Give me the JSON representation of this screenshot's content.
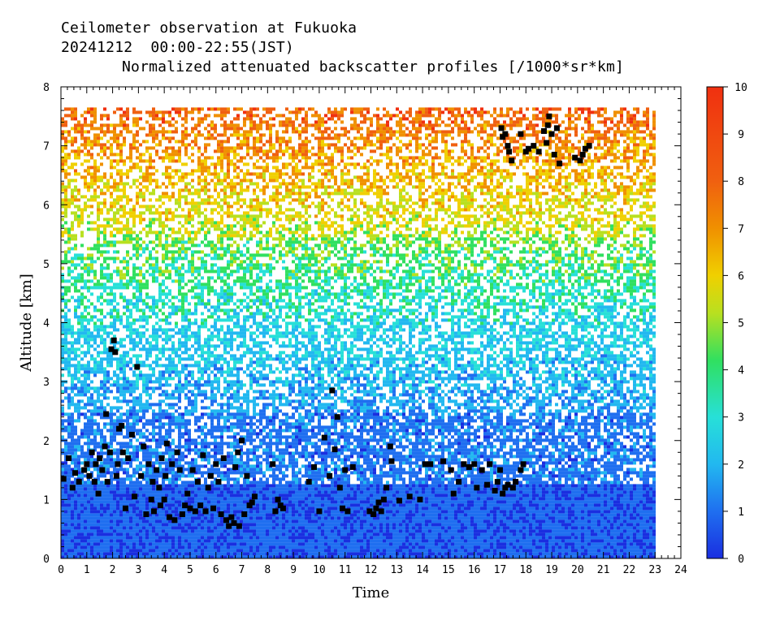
{
  "header": {
    "line1": "Ceilometer observation at Fukuoka",
    "line2": "20241212  00:00-22:55(JST)",
    "line3": "Normalized attenuated backscatter profiles [/1000*sr*km]"
  },
  "chart_data": {
    "type": "heatmap",
    "xlabel": "Time",
    "ylabel": "Altitude [km]",
    "xlim": [
      0,
      24
    ],
    "ylim": [
      0,
      8
    ],
    "xticks": [
      "0",
      "1",
      "2",
      "3",
      "4",
      "5",
      "6",
      "7",
      "8",
      "9",
      "10",
      "11",
      "12",
      "13",
      "14",
      "15",
      "16",
      "17",
      "18",
      "19",
      "20",
      "21",
      "22",
      "23",
      "24"
    ],
    "yticks": [
      "0",
      "1",
      "2",
      "3",
      "4",
      "5",
      "6",
      "7",
      "8"
    ],
    "data_time_range": [
      0,
      22.92
    ],
    "data_altitude_max": 7.65,
    "colorbar": {
      "min": 0,
      "max": 10,
      "ticks": [
        "0",
        "1",
        "2",
        "3",
        "4",
        "5",
        "6",
        "7",
        "8",
        "9",
        "10"
      ],
      "colors": [
        "#1a2ee0",
        "#1f6ff0",
        "#22b8f0",
        "#27e0d8",
        "#30e060",
        "#b8e020",
        "#f0d000",
        "#f09000",
        "#f06010",
        "#f03010"
      ]
    },
    "cloud_base_points": [
      [
        0.1,
        1.35
      ],
      [
        0.3,
        1.7
      ],
      [
        0.45,
        1.2
      ],
      [
        0.55,
        1.45
      ],
      [
        0.7,
        1.3
      ],
      [
        0.9,
        1.5
      ],
      [
        1.0,
        1.6
      ],
      [
        1.1,
        1.4
      ],
      [
        1.2,
        1.8
      ],
      [
        1.3,
        1.3
      ],
      [
        1.35,
        1.6
      ],
      [
        1.45,
        1.1
      ],
      [
        1.5,
        1.7
      ],
      [
        1.6,
        1.5
      ],
      [
        1.7,
        1.9
      ],
      [
        1.75,
        2.45
      ],
      [
        1.8,
        1.3
      ],
      [
        1.9,
        1.8
      ],
      [
        1.95,
        3.55
      ],
      [
        2.05,
        3.7
      ],
      [
        2.1,
        3.5
      ],
      [
        2.15,
        1.4
      ],
      [
        2.2,
        1.6
      ],
      [
        2.25,
        2.2
      ],
      [
        2.35,
        2.25
      ],
      [
        2.4,
        1.8
      ],
      [
        2.5,
        0.85
      ],
      [
        2.6,
        1.7
      ],
      [
        2.75,
        2.1
      ],
      [
        2.85,
        1.05
      ],
      [
        2.95,
        3.25
      ],
      [
        3.1,
        1.4
      ],
      [
        3.2,
        1.9
      ],
      [
        3.3,
        0.75
      ],
      [
        3.4,
        1.6
      ],
      [
        3.5,
        1.0
      ],
      [
        3.55,
        1.3
      ],
      [
        3.6,
        0.8
      ],
      [
        3.7,
        1.5
      ],
      [
        3.8,
        1.2
      ],
      [
        3.85,
        0.9
      ],
      [
        3.9,
        1.7
      ],
      [
        4.0,
        1.0
      ],
      [
        4.05,
        1.4
      ],
      [
        4.1,
        1.95
      ],
      [
        4.2,
        0.7
      ],
      [
        4.3,
        1.6
      ],
      [
        4.4,
        0.65
      ],
      [
        4.5,
        1.8
      ],
      [
        4.6,
        1.5
      ],
      [
        4.7,
        0.75
      ],
      [
        4.8,
        0.9
      ],
      [
        4.9,
        1.1
      ],
      [
        5.0,
        0.85
      ],
      [
        5.1,
        1.5
      ],
      [
        5.2,
        0.8
      ],
      [
        5.3,
        1.3
      ],
      [
        5.4,
        0.9
      ],
      [
        5.5,
        1.75
      ],
      [
        5.6,
        0.8
      ],
      [
        5.7,
        1.2
      ],
      [
        5.8,
        1.4
      ],
      [
        5.9,
        0.85
      ],
      [
        6.0,
        1.6
      ],
      [
        6.1,
        1.3
      ],
      [
        6.2,
        0.75
      ],
      [
        6.3,
        1.7
      ],
      [
        6.4,
        0.65
      ],
      [
        6.5,
        0.55
      ],
      [
        6.6,
        0.7
      ],
      [
        6.7,
        0.6
      ],
      [
        6.75,
        1.55
      ],
      [
        6.85,
        1.8
      ],
      [
        6.9,
        0.55
      ],
      [
        7.0,
        2.0
      ],
      [
        7.1,
        0.75
      ],
      [
        7.2,
        1.4
      ],
      [
        7.3,
        0.9
      ],
      [
        7.4,
        0.95
      ],
      [
        7.5,
        1.05
      ],
      [
        8.2,
        1.6
      ],
      [
        8.3,
        0.8
      ],
      [
        8.4,
        1.0
      ],
      [
        8.5,
        0.9
      ],
      [
        8.6,
        0.85
      ],
      [
        9.6,
        1.3
      ],
      [
        9.8,
        1.55
      ],
      [
        10.0,
        0.8
      ],
      [
        10.2,
        2.05
      ],
      [
        10.4,
        1.4
      ],
      [
        10.5,
        2.85
      ],
      [
        10.6,
        1.85
      ],
      [
        10.7,
        2.4
      ],
      [
        10.8,
        1.2
      ],
      [
        10.9,
        0.85
      ],
      [
        11.0,
        1.5
      ],
      [
        11.1,
        0.8
      ],
      [
        11.3,
        1.55
      ],
      [
        11.95,
        0.8
      ],
      [
        12.1,
        0.75
      ],
      [
        12.2,
        0.85
      ],
      [
        12.3,
        0.95
      ],
      [
        12.4,
        0.8
      ],
      [
        12.5,
        1.0
      ],
      [
        12.6,
        1.2
      ],
      [
        12.75,
        1.9
      ],
      [
        12.8,
        1.65
      ],
      [
        13.1,
        0.98
      ],
      [
        13.5,
        1.05
      ],
      [
        13.9,
        1.0
      ],
      [
        14.1,
        1.6
      ],
      [
        14.3,
        1.6
      ],
      [
        14.8,
        1.65
      ],
      [
        15.1,
        1.5
      ],
      [
        15.2,
        1.1
      ],
      [
        15.4,
        1.3
      ],
      [
        15.6,
        1.6
      ],
      [
        15.8,
        1.55
      ],
      [
        16.0,
        1.6
      ],
      [
        16.1,
        1.2
      ],
      [
        16.3,
        1.5
      ],
      [
        16.5,
        1.25
      ],
      [
        16.6,
        1.6
      ],
      [
        16.8,
        1.15
      ],
      [
        16.9,
        1.3
      ],
      [
        17.0,
        1.5
      ],
      [
        17.1,
        1.1
      ],
      [
        17.2,
        1.2
      ],
      [
        17.3,
        1.25
      ],
      [
        17.5,
        1.2
      ],
      [
        17.6,
        1.3
      ],
      [
        17.8,
        1.5
      ],
      [
        17.9,
        1.6
      ],
      [
        17.05,
        7.3
      ],
      [
        17.1,
        7.15
      ],
      [
        17.2,
        7.2
      ],
      [
        17.3,
        7.0
      ],
      [
        17.35,
        6.9
      ],
      [
        17.45,
        6.75
      ],
      [
        17.8,
        7.2
      ],
      [
        18.0,
        6.9
      ],
      [
        18.1,
        6.95
      ],
      [
        18.3,
        7.0
      ],
      [
        18.5,
        6.9
      ],
      [
        18.7,
        7.25
      ],
      [
        18.8,
        7.05
      ],
      [
        18.85,
        7.35
      ],
      [
        18.9,
        7.5
      ],
      [
        19.0,
        7.2
      ],
      [
        19.1,
        6.85
      ],
      [
        19.2,
        7.3
      ],
      [
        19.3,
        6.7
      ],
      [
        19.9,
        6.8
      ],
      [
        20.1,
        6.75
      ],
      [
        20.2,
        6.85
      ],
      [
        20.3,
        6.95
      ],
      [
        20.45,
        7.0
      ]
    ]
  }
}
